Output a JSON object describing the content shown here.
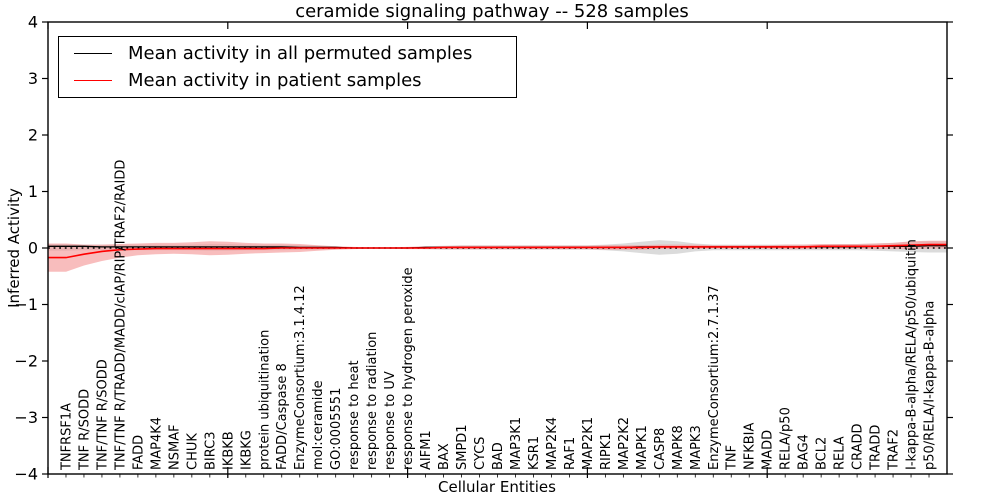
{
  "legend": [
    {
      "label": "Mean activity in all permuted samples",
      "color": "#000000"
    },
    {
      "label": "Mean activity in patient samples",
      "color": "#ff0000"
    }
  ],
  "chart_data": {
    "type": "line",
    "title": "ceramide signaling pathway -- 528 samples",
    "xlabel": "Cellular Entities",
    "ylabel": "Inferred Activity",
    "ylim": [
      -4,
      4
    ],
    "yticks": [
      -4,
      -3,
      -2,
      -1,
      0,
      1,
      2,
      3,
      4
    ],
    "xtick_major_positions": [
      0,
      10,
      20,
      30,
      40
    ],
    "grid": false,
    "legend_position": "upper left",
    "zero_line": {
      "y": 0,
      "style": "dotted",
      "color": "#000000"
    },
    "categories": [
      "TNFRSF1A",
      "TNF R/SODD",
      "TNF/TNF R/SODD",
      "TNF/TNF R/TRADD/MADD/cIAP/RIP/TRAF2/RAIDD",
      "FADD",
      "MAP4K4",
      "NSMAF",
      "CHUK",
      "BIRC3",
      "IKBKB",
      "IKBKG",
      "protein ubiquitination",
      "FADD/Caspase 8",
      "EnzymeConsortium:3.1.4.12",
      "mol:ceramide",
      "GO:0005551",
      "response to heat",
      "response to radiation",
      "response to UV",
      "response to hydrogen peroxide",
      "AIFM1",
      "BAX",
      "SMPD1",
      "CYCS",
      "BAD",
      "MAP3K1",
      "KSR1",
      "MAP2K4",
      "RAF1",
      "MAP2K1",
      "RIPK1",
      "MAP2K2",
      "MAPK1",
      "CASP8",
      "MAPK8",
      "MAPK3",
      "EnzymeConsortium:2.7.1.37",
      "TNF",
      "NFKBIA",
      "MADD",
      "RELA/p50",
      "BAG4",
      "BCL2",
      "RELA",
      "CRADD",
      "TRADD",
      "TRAF2",
      "I-kappa-B-alpha/RELA/p50/ubiquitin",
      "p50/RELA/I-kappa-B-alpha"
    ],
    "series": [
      {
        "name": "Mean activity in all permuted samples",
        "color": "#000000",
        "band_color": "#cfcfcf",
        "band_opacity": 0.75,
        "values": [
          0.03,
          0.03,
          0.02,
          0.02,
          0.02,
          0.02,
          0.02,
          0.02,
          0.02,
          0.02,
          0.02,
          0.02,
          0.02,
          0.01,
          0.01,
          0.01,
          0.0,
          0.0,
          0.0,
          0.0,
          0.01,
          0.01,
          0.01,
          0.01,
          0.01,
          0.01,
          0.01,
          0.01,
          0.01,
          0.01,
          0.01,
          0.01,
          0.02,
          0.02,
          0.02,
          0.02,
          0.02,
          0.02,
          0.02,
          0.02,
          0.02,
          0.02,
          0.02,
          0.02,
          0.02,
          0.03,
          0.03,
          0.03,
          0.04
        ],
        "band_upper": [
          0.07,
          0.06,
          0.06,
          0.06,
          0.06,
          0.06,
          0.06,
          0.06,
          0.07,
          0.07,
          0.06,
          0.06,
          0.06,
          0.05,
          0.04,
          0.03,
          0.01,
          0.01,
          0.01,
          0.01,
          0.03,
          0.04,
          0.05,
          0.05,
          0.05,
          0.05,
          0.05,
          0.05,
          0.05,
          0.05,
          0.06,
          0.08,
          0.11,
          0.14,
          0.12,
          0.08,
          0.06,
          0.06,
          0.06,
          0.06,
          0.06,
          0.06,
          0.06,
          0.07,
          0.07,
          0.08,
          0.09,
          0.11,
          0.12
        ],
        "band_lower": [
          -0.05,
          -0.04,
          -0.04,
          -0.04,
          -0.04,
          -0.04,
          -0.04,
          -0.04,
          -0.05,
          -0.05,
          -0.04,
          -0.04,
          -0.04,
          -0.03,
          -0.03,
          -0.02,
          -0.01,
          -0.01,
          -0.01,
          -0.01,
          -0.02,
          -0.03,
          -0.03,
          -0.03,
          -0.03,
          -0.03,
          -0.03,
          -0.03,
          -0.03,
          -0.03,
          -0.04,
          -0.06,
          -0.09,
          -0.12,
          -0.1,
          -0.06,
          -0.04,
          -0.04,
          -0.04,
          -0.04,
          -0.04,
          -0.04,
          -0.04,
          -0.04,
          -0.04,
          -0.05,
          -0.06,
          -0.07,
          -0.08
        ]
      },
      {
        "name": "Mean activity in patient samples",
        "color": "#ff0000",
        "band_color": "#f59a9a",
        "band_opacity": 0.65,
        "values": [
          -0.17,
          -0.11,
          -0.06,
          -0.03,
          -0.02,
          -0.01,
          -0.01,
          -0.01,
          -0.01,
          -0.01,
          -0.01,
          -0.01,
          0.0,
          0.0,
          0.0,
          0.0,
          0.0,
          0.0,
          0.0,
          0.0,
          0.0,
          0.01,
          0.01,
          0.01,
          0.01,
          0.01,
          0.01,
          0.01,
          0.01,
          0.01,
          0.01,
          0.01,
          0.01,
          0.02,
          0.02,
          0.02,
          0.02,
          0.02,
          0.02,
          0.02,
          0.02,
          0.02,
          0.03,
          0.03,
          0.03,
          0.03,
          0.04,
          0.05,
          0.06
        ],
        "band_upper": [
          0.08,
          0.06,
          0.06,
          0.07,
          0.08,
          0.09,
          0.09,
          0.1,
          0.12,
          0.11,
          0.09,
          0.08,
          0.08,
          0.07,
          0.05,
          0.03,
          0.02,
          0.01,
          0.01,
          0.02,
          0.03,
          0.03,
          0.04,
          0.04,
          0.04,
          0.04,
          0.04,
          0.04,
          0.04,
          0.04,
          0.05,
          0.05,
          0.05,
          0.06,
          0.06,
          0.06,
          0.05,
          0.05,
          0.05,
          0.05,
          0.06,
          0.06,
          0.07,
          0.07,
          0.07,
          0.08,
          0.09,
          0.12,
          0.13
        ],
        "band_lower": [
          -0.42,
          -0.31,
          -0.23,
          -0.17,
          -0.13,
          -0.11,
          -0.1,
          -0.11,
          -0.13,
          -0.12,
          -0.1,
          -0.09,
          -0.08,
          -0.07,
          -0.05,
          -0.03,
          -0.02,
          -0.01,
          -0.01,
          -0.02,
          -0.02,
          -0.02,
          -0.02,
          -0.02,
          -0.02,
          -0.02,
          -0.02,
          -0.02,
          -0.02,
          -0.02,
          -0.03,
          -0.03,
          -0.03,
          -0.02,
          -0.02,
          -0.02,
          -0.01,
          -0.01,
          -0.01,
          -0.01,
          -0.02,
          -0.02,
          -0.01,
          -0.01,
          -0.01,
          -0.02,
          -0.02,
          -0.02,
          -0.01
        ]
      }
    ]
  }
}
